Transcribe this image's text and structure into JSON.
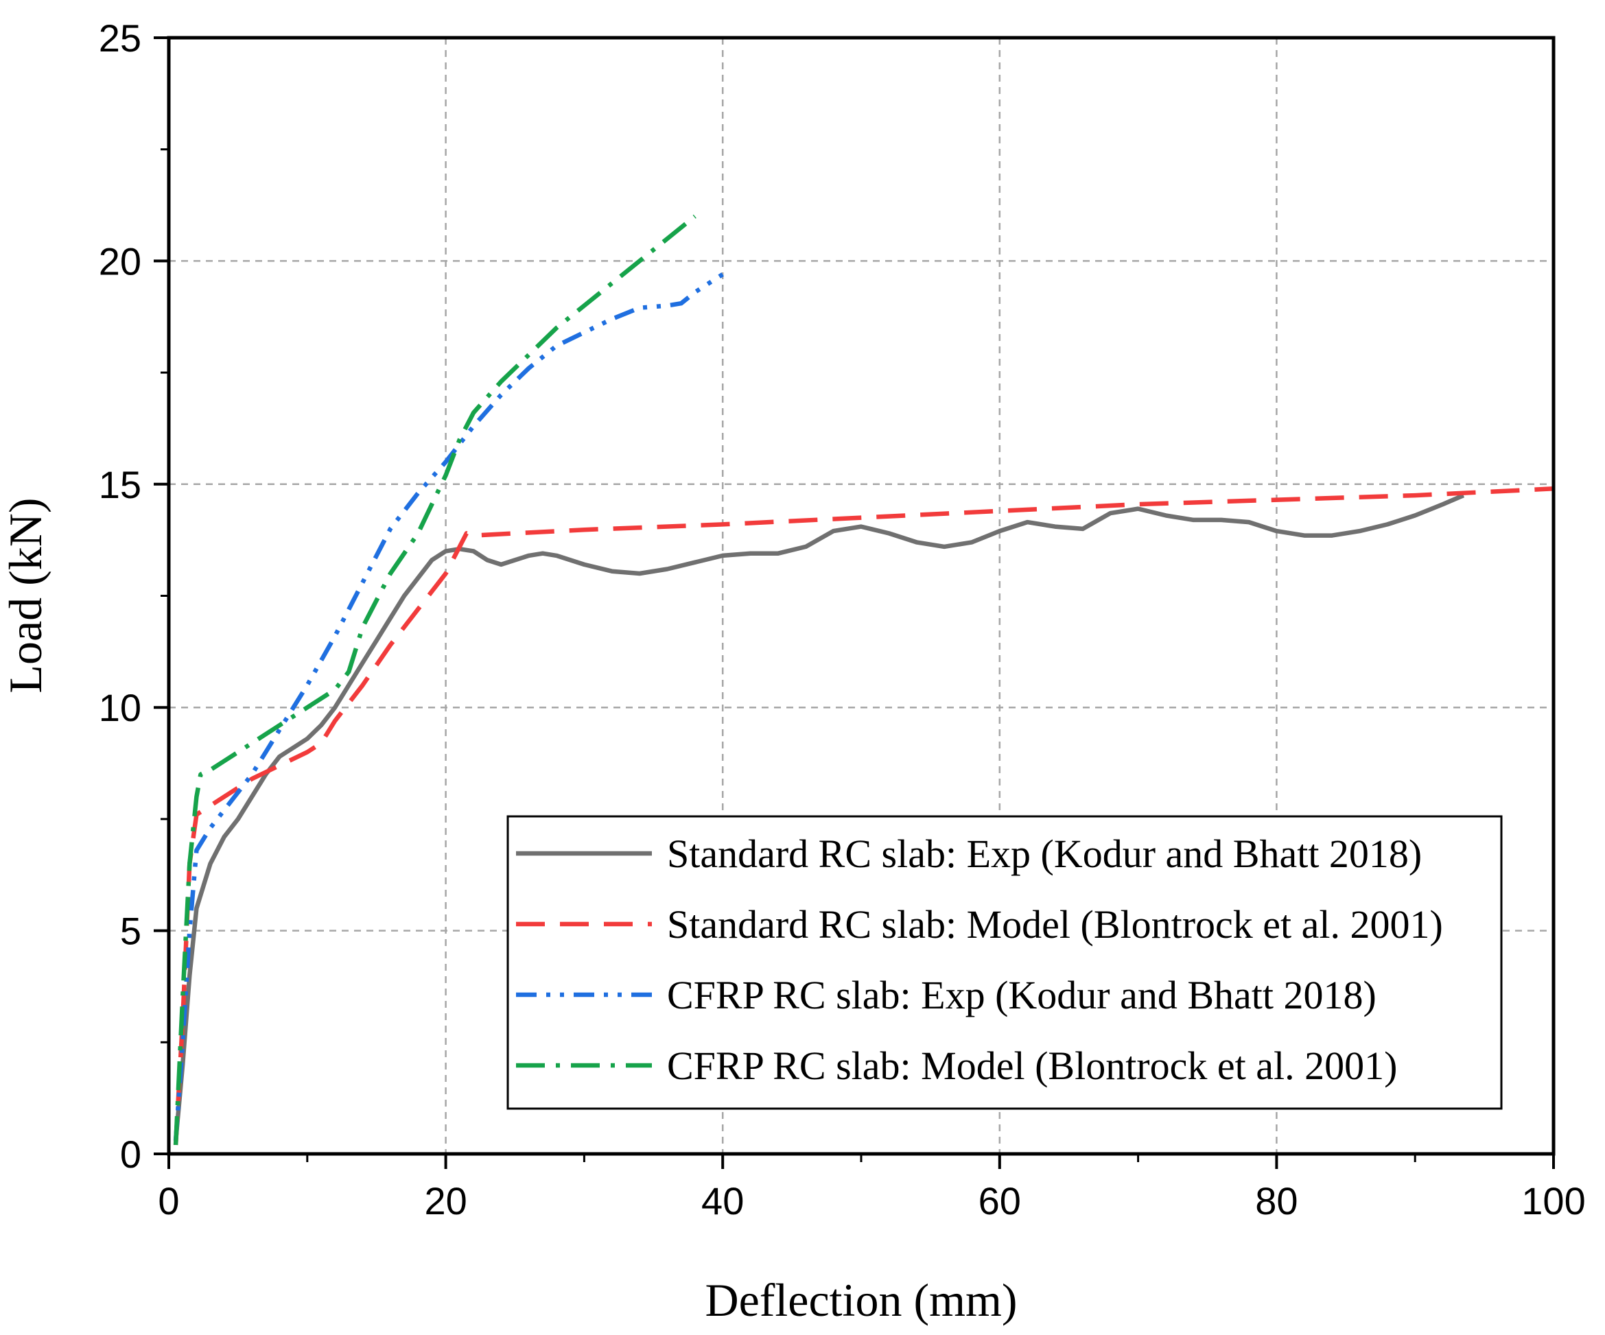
{
  "chart_data": {
    "type": "line",
    "title": "",
    "xlabel": "Deflection (mm)",
    "ylabel": "Load (kN)",
    "xlim": [
      0,
      100
    ],
    "ylim": [
      0,
      25
    ],
    "xticks": [
      "0",
      "20",
      "40",
      "60",
      "80",
      "100"
    ],
    "yticks": [
      "0",
      "5",
      "10",
      "15",
      "20",
      "25"
    ],
    "grid": true,
    "legend_position": "bottom-right",
    "series": [
      {
        "name": "Standard RC slab: Exp (Kodur and Bhatt 2018)",
        "color": "#707070",
        "dash": "solid",
        "x": [
          0.5,
          1.0,
          1.5,
          2.0,
          3.0,
          4.0,
          5.0,
          6.0,
          7.0,
          8.0,
          9.0,
          10.0,
          11.0,
          12.0,
          13.0,
          14.0,
          15.0,
          16.0,
          17.0,
          18.0,
          19.0,
          20.0,
          21.0,
          22.0,
          23.0,
          24.0,
          25.0,
          26.0,
          27.0,
          28.0,
          29.0,
          30.0,
          32.0,
          34.0,
          36.0,
          38.0,
          40.0,
          42.0,
          44.0,
          46.0,
          48.0,
          50.0,
          52.0,
          54.0,
          56.0,
          58.0,
          60.0,
          62.0,
          64.0,
          66.0,
          68.0,
          70.0,
          72.0,
          74.0,
          76.0,
          78.0,
          80.0,
          82.0,
          84.0,
          86.0,
          88.0,
          90.0,
          92.0,
          93.5
        ],
        "y": [
          0.3,
          2.0,
          4.0,
          5.5,
          6.5,
          7.1,
          7.5,
          8.0,
          8.5,
          8.9,
          9.1,
          9.3,
          9.6,
          10.0,
          10.5,
          11.0,
          11.5,
          12.0,
          12.5,
          12.9,
          13.3,
          13.5,
          13.55,
          13.5,
          13.3,
          13.2,
          13.3,
          13.4,
          13.45,
          13.4,
          13.3,
          13.2,
          13.05,
          13.0,
          13.1,
          13.25,
          13.4,
          13.45,
          13.45,
          13.6,
          13.95,
          14.05,
          13.9,
          13.7,
          13.6,
          13.7,
          13.95,
          14.15,
          14.05,
          14.0,
          14.35,
          14.45,
          14.3,
          14.2,
          14.2,
          14.15,
          13.95,
          13.85,
          13.85,
          13.95,
          14.1,
          14.3,
          14.55,
          14.75
        ]
      },
      {
        "name": "Standard RC slab: Model (Blontrock et al. 2001)",
        "color": "#f23b3b",
        "dash": "dashed",
        "x": [
          0.5,
          1.0,
          1.5,
          2.0,
          3.0,
          4.0,
          6.0,
          8.0,
          10.0,
          11.0,
          12.0,
          14.0,
          16.0,
          18.0,
          20.0,
          21.5,
          22.0,
          30.0,
          40.0,
          50.0,
          60.0,
          70.0,
          80.0,
          90.0,
          100.0
        ],
        "y": [
          0.2,
          3.0,
          6.5,
          7.6,
          7.8,
          8.0,
          8.4,
          8.7,
          9.0,
          9.2,
          9.7,
          10.5,
          11.4,
          12.2,
          13.0,
          13.9,
          13.85,
          13.98,
          14.1,
          14.25,
          14.4,
          14.55,
          14.65,
          14.75,
          14.9
        ]
      },
      {
        "name": "CFRP RC slab: Exp (Kodur and Bhatt 2018)",
        "color": "#1f6fe0",
        "dash": "dash-dot-dot",
        "x": [
          0.5,
          1.0,
          1.5,
          2.0,
          3.0,
          4.0,
          5.0,
          6.0,
          7.0,
          8.0,
          9.0,
          10.0,
          12.0,
          14.0,
          16.0,
          18.0,
          20.0,
          22.0,
          24.0,
          26.0,
          28.0,
          30.0,
          32.0,
          34.0,
          36.0,
          37.0,
          38.0,
          39.0,
          40.0
        ],
        "y": [
          0.3,
          2.5,
          5.0,
          6.8,
          7.3,
          7.7,
          8.1,
          8.5,
          9.0,
          9.5,
          10.0,
          10.5,
          11.6,
          12.8,
          14.0,
          14.8,
          15.5,
          16.3,
          17.0,
          17.6,
          18.1,
          18.4,
          18.7,
          18.95,
          19.0,
          19.05,
          19.3,
          19.5,
          19.7
        ]
      },
      {
        "name": "CFRP RC slab: Model (Blontrock et al. 2001)",
        "color": "#16a34a",
        "dash": "dash-dot",
        "x": [
          0.5,
          1.0,
          1.5,
          2.0,
          2.3,
          3.0,
          4.0,
          6.0,
          8.0,
          10.0,
          12.0,
          13.0,
          14.0,
          16.0,
          18.0,
          20.0,
          21.0,
          22.0,
          24.0,
          26.0,
          28.0,
          30.0,
          32.0,
          34.0,
          36.0,
          38.0
        ],
        "y": [
          0.2,
          3.5,
          6.5,
          8.0,
          8.5,
          8.6,
          8.8,
          9.2,
          9.6,
          10.0,
          10.4,
          10.8,
          11.8,
          13.0,
          13.9,
          15.2,
          16.0,
          16.6,
          17.3,
          17.9,
          18.5,
          19.0,
          19.5,
          20.0,
          20.5,
          21.0
        ]
      }
    ]
  }
}
